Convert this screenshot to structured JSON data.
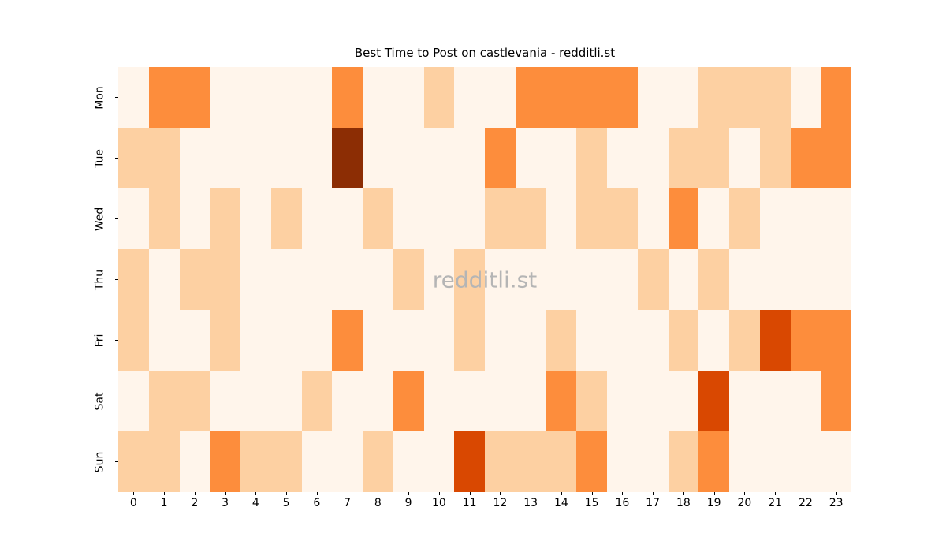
{
  "title": "Best Time to Post on castlevania - redditli.st",
  "watermark": "redditli.st",
  "chart_data": {
    "type": "heatmap",
    "title": "Best Time to Post on castlevania - redditli.st",
    "x_labels": [
      "0",
      "1",
      "2",
      "3",
      "4",
      "5",
      "6",
      "7",
      "8",
      "9",
      "10",
      "11",
      "12",
      "13",
      "14",
      "15",
      "16",
      "17",
      "18",
      "19",
      "20",
      "21",
      "22",
      "23"
    ],
    "y_labels": [
      "Mon",
      "Tue",
      "Wed",
      "Thu",
      "Fri",
      "Sat",
      "Sun"
    ],
    "gridlines": false,
    "legend": "none",
    "value_encoding": "relative intensity level, 1 = lowest, 5 = highest",
    "palette": {
      "name": "Oranges",
      "levels": {
        "1": "#fff5eb",
        "2": "#fdd0a2",
        "3": "#fd8d3c",
        "4": "#d94801",
        "5": "#8c2d04"
      }
    },
    "rows": [
      {
        "day": "Mon",
        "levels": [
          1,
          3,
          3,
          1,
          1,
          1,
          1,
          3,
          1,
          1,
          2,
          1,
          1,
          3,
          3,
          3,
          3,
          1,
          1,
          2,
          2,
          2,
          1,
          3
        ]
      },
      {
        "day": "Tue",
        "levels": [
          2,
          2,
          1,
          1,
          1,
          1,
          1,
          5,
          1,
          1,
          1,
          1,
          3,
          1,
          1,
          2,
          1,
          1,
          2,
          2,
          1,
          2,
          3,
          3
        ]
      },
      {
        "day": "Wed",
        "levels": [
          1,
          2,
          1,
          2,
          1,
          2,
          1,
          1,
          2,
          1,
          1,
          1,
          2,
          2,
          1,
          2,
          2,
          1,
          3,
          1,
          2,
          1,
          1,
          1
        ]
      },
      {
        "day": "Thu",
        "levels": [
          2,
          1,
          2,
          2,
          1,
          1,
          1,
          1,
          1,
          2,
          1,
          2,
          1,
          1,
          1,
          1,
          1,
          2,
          1,
          2,
          1,
          1,
          1,
          1
        ]
      },
      {
        "day": "Fri",
        "levels": [
          2,
          1,
          1,
          2,
          1,
          1,
          1,
          3,
          1,
          1,
          1,
          2,
          1,
          1,
          2,
          1,
          1,
          1,
          2,
          1,
          2,
          4,
          3,
          3
        ]
      },
      {
        "day": "Sat",
        "levels": [
          1,
          2,
          2,
          1,
          1,
          1,
          2,
          1,
          1,
          3,
          1,
          1,
          1,
          1,
          3,
          2,
          1,
          1,
          1,
          4,
          1,
          1,
          1,
          3
        ]
      },
      {
        "day": "Sun",
        "levels": [
          2,
          2,
          1,
          3,
          2,
          2,
          1,
          1,
          2,
          1,
          1,
          4,
          2,
          2,
          2,
          3,
          1,
          1,
          2,
          3,
          1,
          1,
          1,
          1
        ]
      }
    ]
  }
}
